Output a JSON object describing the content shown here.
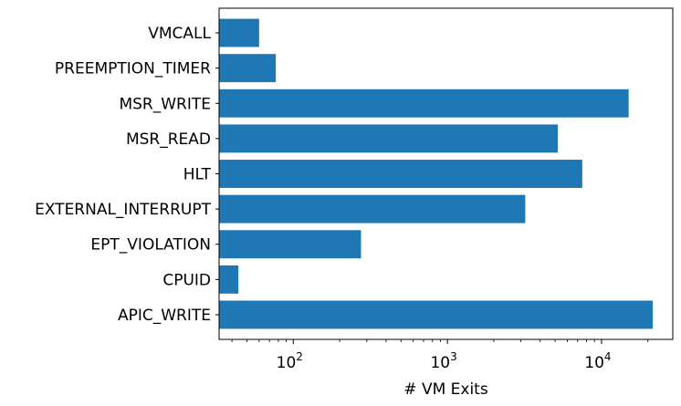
{
  "chart_data": {
    "type": "bar",
    "orientation": "horizontal",
    "categories": [
      "APIC_WRITE",
      "CPUID",
      "EPT_VIOLATION",
      "EXTERNAL_INTERRUPT",
      "HLT",
      "MSR_READ",
      "MSR_WRITE",
      "PREEMPTION_TIMER",
      "VMCALL"
    ],
    "values": [
      21500,
      44,
      275,
      3200,
      7500,
      5200,
      15000,
      77,
      60
    ],
    "xlabel": "# VM Exits",
    "ylabel": "",
    "xscale": "log",
    "xlim": [
      33,
      29000
    ],
    "x_ticks": [
      {
        "base": "10",
        "exp": "2",
        "value": 100
      },
      {
        "base": "10",
        "exp": "3",
        "value": 1000
      },
      {
        "base": "10",
        "exp": "4",
        "value": 10000
      }
    ],
    "grid": false,
    "legend": "none",
    "bar_color": "#1f77b4"
  }
}
